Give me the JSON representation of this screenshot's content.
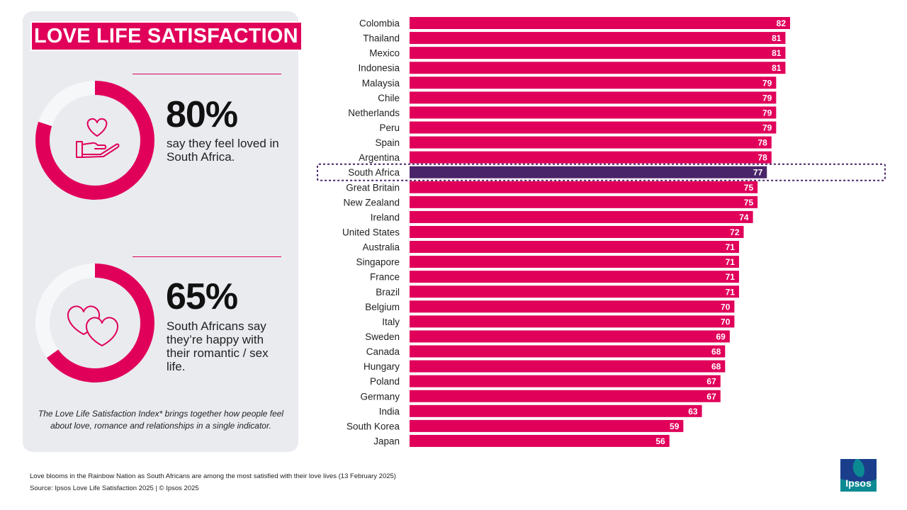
{
  "panel": {
    "title": "LOVE LIFE SATISFACTION",
    "stat1": {
      "value": "80%",
      "text": "say they feel loved in South Africa.",
      "icon": "heart-in-hand-icon",
      "percent": 80
    },
    "stat2": {
      "value": "65%",
      "text": "South Africans say they’re happy with their romantic / sex life.",
      "icon": "two-hearts-icon",
      "percent": 65
    },
    "footnote": "The Love Life Satisfaction Index* brings together how people feel about love, romance and relationships in a single indicator."
  },
  "colors": {
    "accent": "#e0005a",
    "highlight": "#4a2468",
    "panel_bg": "#e9ebef",
    "logo": "#0b8a93"
  },
  "chart_data": {
    "type": "bar",
    "orientation": "horizontal",
    "title": "",
    "categories": [
      "Colombia",
      "Thailand",
      "Mexico",
      "Indonesia",
      "Malaysia",
      "Chile",
      "Netherlands",
      "Peru",
      "Spain",
      "Argentina",
      "South Africa",
      "Great Britain",
      "New Zealand",
      "Ireland",
      "United States",
      "Australia",
      "Singapore",
      "France",
      "Brazil",
      "Belgium",
      "Italy",
      "Sweden",
      "Canada",
      "Hungary",
      "Poland",
      "Germany",
      "India",
      "South Korea",
      "Japan"
    ],
    "values": [
      82,
      81,
      81,
      81,
      79,
      79,
      79,
      79,
      78,
      78,
      77,
      75,
      75,
      74,
      72,
      71,
      71,
      71,
      71,
      70,
      70,
      69,
      68,
      68,
      67,
      67,
      63,
      59,
      56
    ],
    "highlight": "South Africa",
    "xlim": [
      0,
      82
    ],
    "grid": false,
    "legend": "none",
    "data_labels": true
  },
  "footer": {
    "caption": "Love blooms in the Rainbow Nation as South Africans are among the most satisfied with their love lives (13 February 2025)",
    "source": "Source: Ipsos Love Life Satisfaction 2025 | © Ipsos 2025"
  },
  "logo": {
    "text": "Ipsos"
  }
}
